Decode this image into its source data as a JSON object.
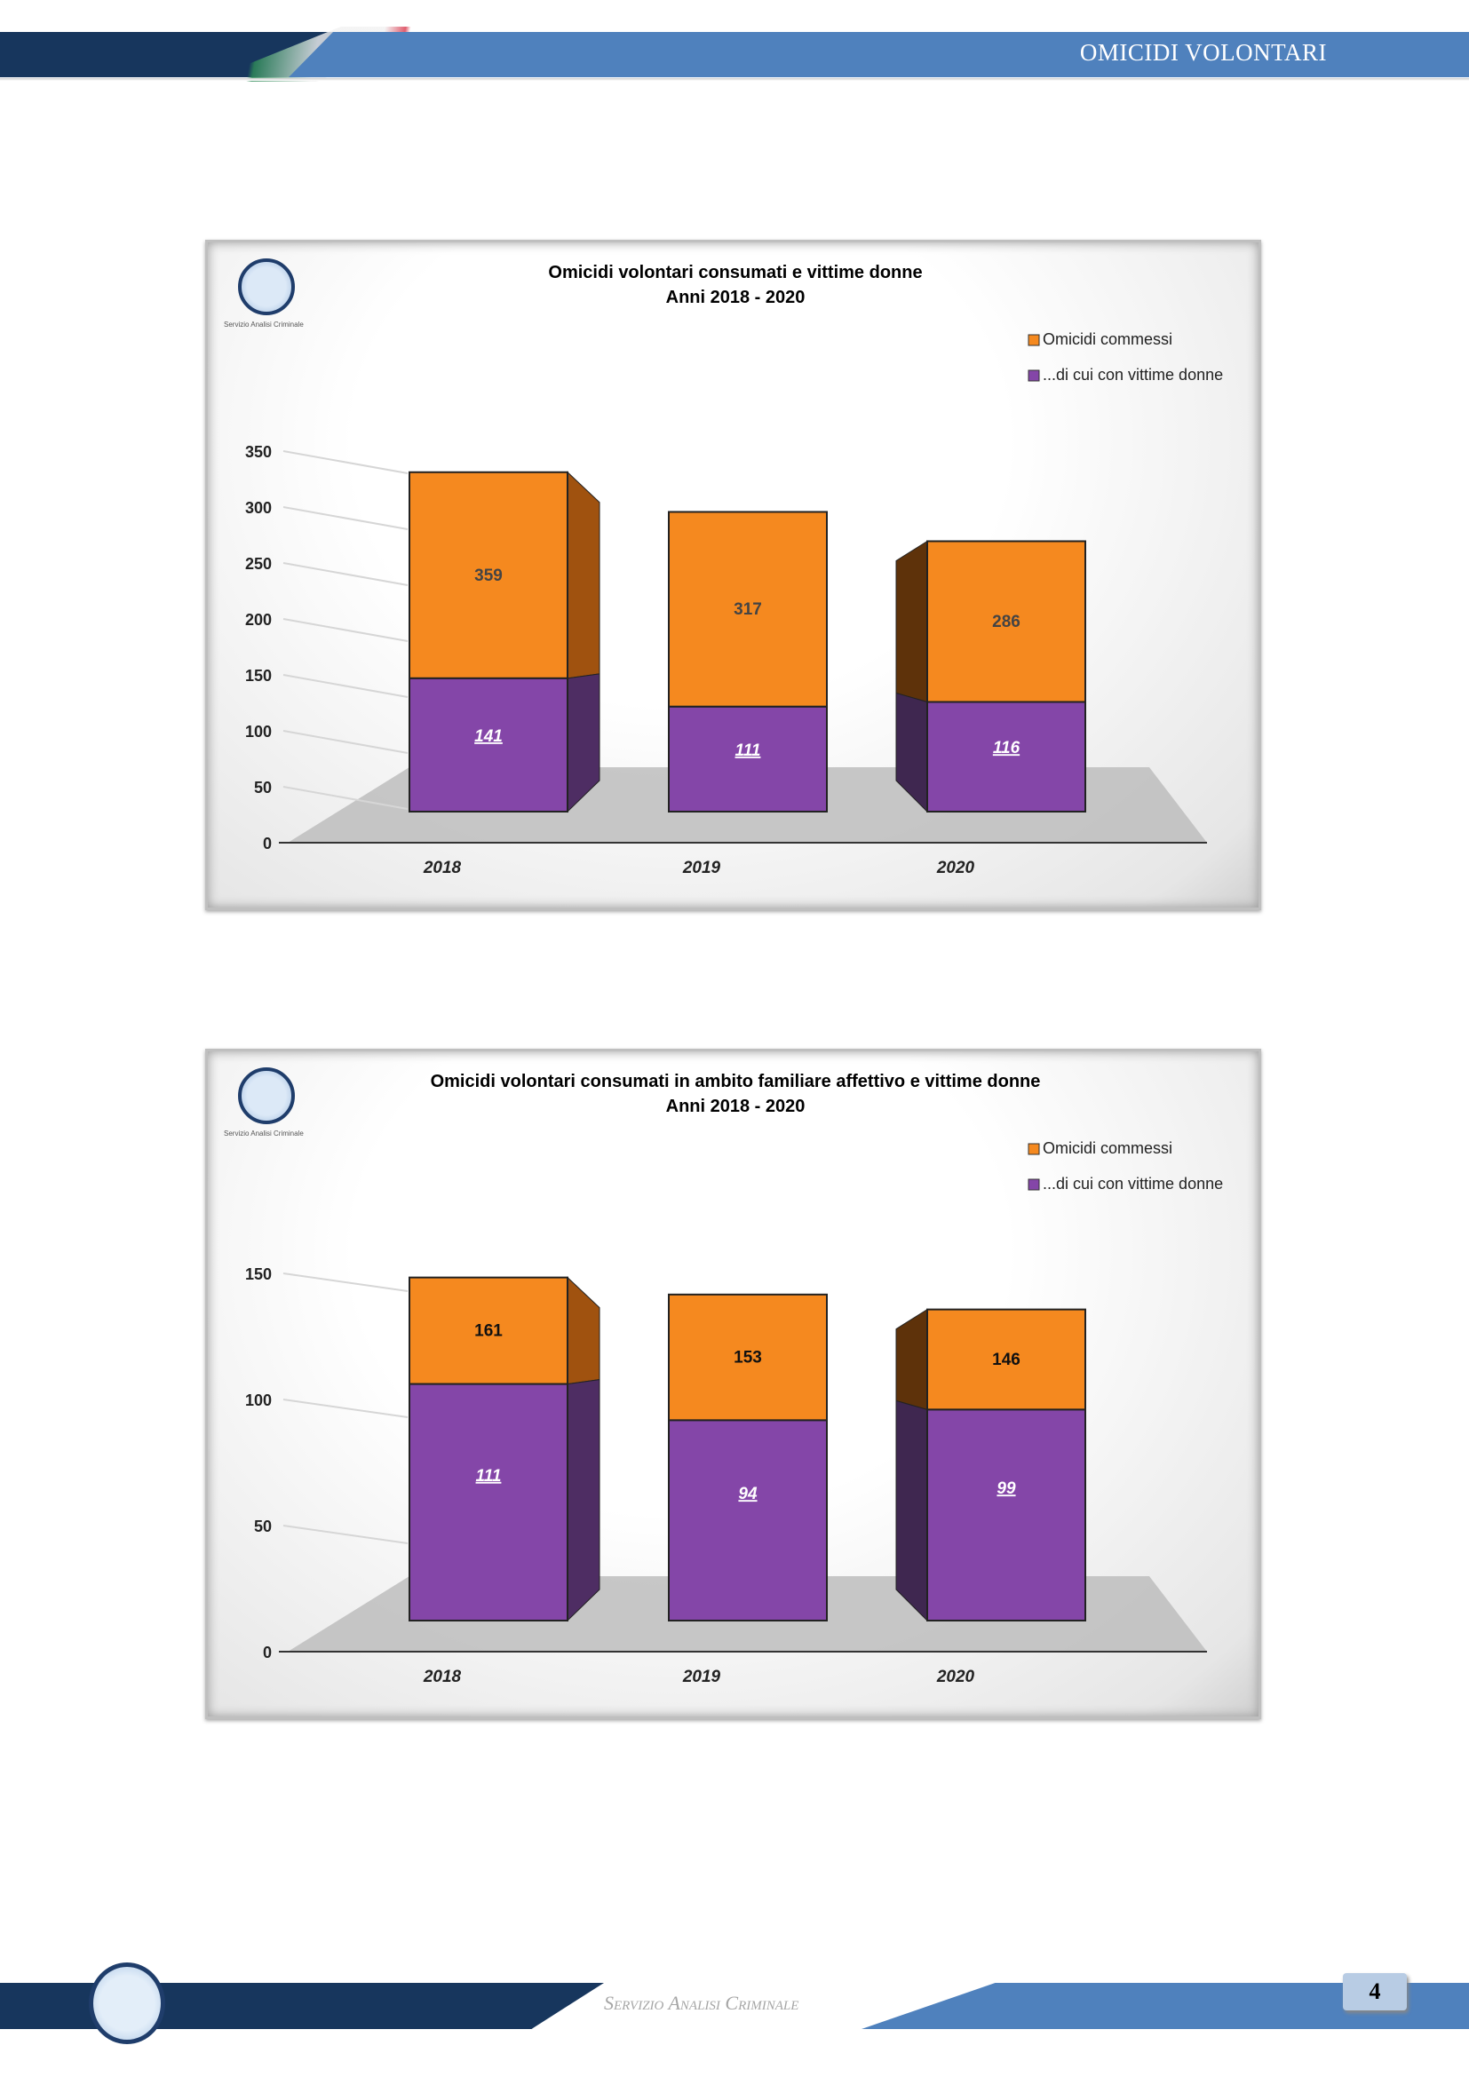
{
  "header": {
    "title": "OMICIDI VOLONTARI"
  },
  "footer": {
    "service": "Servizio Analisi Criminale",
    "page_number": "4"
  },
  "logo_caption": "Servizio Analisi Criminale",
  "colors": {
    "orange": "#f5891f",
    "purple": "#8446a8",
    "orange_side": "#a0520f",
    "purple_side": "#4e2d63"
  },
  "chart_data": [
    {
      "type": "bar",
      "stacked": false,
      "title": "Omicidi volontari consumati e vittime donne",
      "subtitle": "Anni 2018 - 2020",
      "categories": [
        "2018",
        "2019",
        "2020"
      ],
      "series": [
        {
          "name": "Omicidi commessi",
          "values": [
            359,
            317,
            286
          ]
        },
        {
          "name": "...di cui con vittime donne",
          "values": [
            141,
            111,
            116
          ]
        }
      ],
      "yticks": [
        0,
        50,
        100,
        150,
        200,
        250,
        300,
        350
      ],
      "ylim": [
        0,
        350
      ],
      "xlabel": "",
      "ylabel": "",
      "legend": "top-right",
      "grid": true
    },
    {
      "type": "bar",
      "stacked": false,
      "title": "Omicidi volontari consumati in ambito familiare affettivo e vittime donne",
      "subtitle": "Anni 2018 - 2020",
      "categories": [
        "2018",
        "2019",
        "2020"
      ],
      "series": [
        {
          "name": "Omicidi commessi",
          "values": [
            161,
            153,
            146
          ]
        },
        {
          "name": "...di cui con vittime donne",
          "values": [
            111,
            94,
            99
          ]
        }
      ],
      "yticks": [
        0,
        50,
        100,
        150
      ],
      "ylim": [
        0,
        150
      ],
      "xlabel": "",
      "ylabel": "",
      "legend": "top-right",
      "grid": true
    }
  ]
}
